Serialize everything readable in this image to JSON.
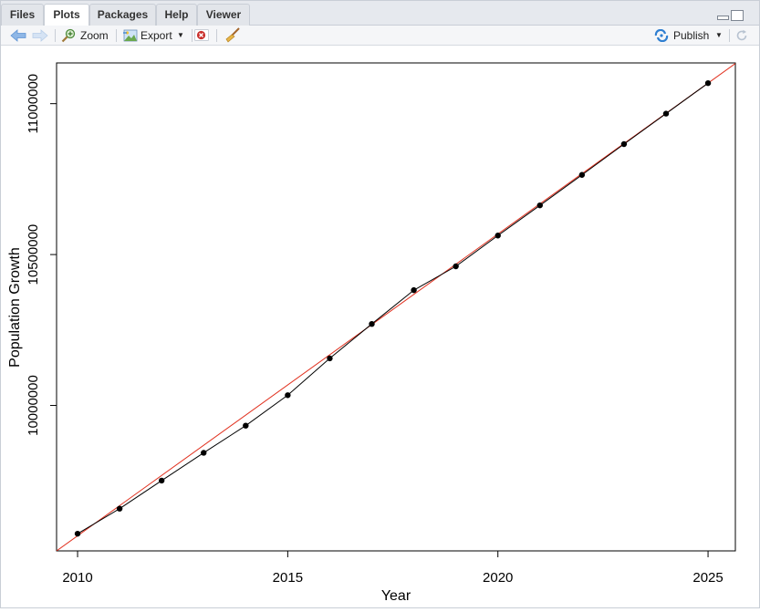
{
  "tabs": [
    {
      "label": "Files",
      "active": false
    },
    {
      "label": "Plots",
      "active": true
    },
    {
      "label": "Packages",
      "active": false
    },
    {
      "label": "Help",
      "active": false
    },
    {
      "label": "Viewer",
      "active": false
    }
  ],
  "toolbar": {
    "back_icon": "back-arrow-icon",
    "forward_icon": "forward-arrow-icon",
    "zoom_label": "Zoom",
    "export_label": "Export",
    "publish_label": "Publish"
  },
  "colors": {
    "data_line": "#000000",
    "fit_line": "#e1301e",
    "accent": "#2f7fd1"
  },
  "chart_data": {
    "type": "line",
    "title": "",
    "xlabel": "Year",
    "ylabel": "Population Growth",
    "xlim": [
      2009.5,
      2025.65
    ],
    "ylim": [
      9518000,
      11135000
    ],
    "x_ticks": [
      2010,
      2015,
      2020,
      2025
    ],
    "y_ticks": [
      10000000,
      10500000,
      11000000
    ],
    "x_tick_labels": [
      "2010",
      "2015",
      "2020",
      "2025"
    ],
    "y_tick_labels": [
      "10000000",
      "10500000",
      "11000000"
    ],
    "series": [
      {
        "x": [
          2010,
          2011,
          2012,
          2013,
          2014,
          2015,
          2016,
          2017,
          2018,
          2019,
          2020,
          2021,
          2022,
          2023,
          2024,
          2025
        ],
        "values": [
          9575000,
          9658000,
          9751000,
          9843000,
          9933000,
          10034000,
          10156000,
          10270000,
          10382000,
          10461000,
          10563000,
          10663000,
          10764000,
          10866000,
          10967000,
          11068000
        ]
      }
    ],
    "fit_line": {
      "intercept_at_2010": 9568000,
      "slope": 100000
    },
    "grid": false
  }
}
